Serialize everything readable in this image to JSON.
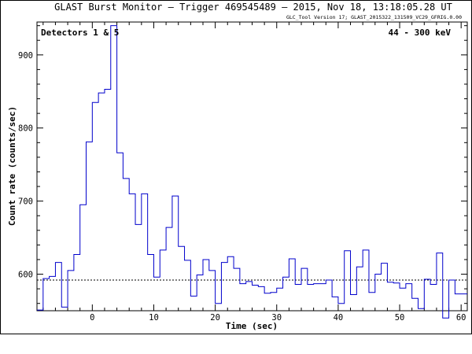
{
  "chart_data": {
    "type": "line",
    "title": "GLAST Burst Monitor  –  Trigger 469545489  –  2015, Nov 18, 13:18:05.28 UT",
    "subtitle": "GLC_Tool Version 17; GLAST_2015322_131509_VC29_GFRIG.0.00",
    "xlabel": "Time (sec)",
    "ylabel": "Count rate (counts/sec)",
    "xlim": [
      -9,
      61
    ],
    "ylim": [
      550,
      945
    ],
    "x_ticks": [
      0,
      10,
      20,
      30,
      40,
      50,
      60
    ],
    "y_ticks": [
      600,
      700,
      800,
      900
    ],
    "grid": false,
    "annotation_left": "Detectors 1 & 5",
    "annotation_right": "44 - 300 keV",
    "background_level": 592,
    "series": [
      {
        "style": "step",
        "color": "#0000cc",
        "bin_edges": [
          -9,
          -8,
          -7,
          -6,
          -5,
          -4,
          -3,
          -2,
          -1,
          0,
          1,
          2,
          3,
          4,
          5,
          6,
          7,
          8,
          9,
          10,
          11,
          12,
          13,
          14,
          15,
          16,
          17,
          18,
          19,
          20,
          21,
          22,
          23,
          24,
          25,
          26,
          27,
          28,
          29,
          30,
          31,
          32,
          33,
          34,
          35,
          36,
          37,
          38,
          39,
          40,
          41,
          42,
          43,
          44,
          45,
          46,
          47,
          48,
          49,
          50,
          51,
          52,
          53,
          54,
          55,
          56,
          57,
          58,
          59,
          60,
          61
        ],
        "values": [
          551,
          594,
          597,
          616,
          555,
          605,
          627,
          695,
          781,
          835,
          848,
          853,
          940,
          766,
          731,
          710,
          668,
          710,
          627,
          596,
          633,
          664,
          707,
          638,
          619,
          570,
          599,
          620,
          605,
          560,
          616,
          624,
          608,
          587,
          590,
          585,
          583,
          574,
          575,
          581,
          596,
          621,
          586,
          608,
          586,
          587,
          587,
          592,
          569,
          560,
          632,
          572,
          610,
          633,
          575,
          600,
          615,
          589,
          588,
          581,
          587,
          567,
          553,
          593,
          586,
          629,
          540,
          592,
          573,
          573
        ]
      }
    ]
  }
}
